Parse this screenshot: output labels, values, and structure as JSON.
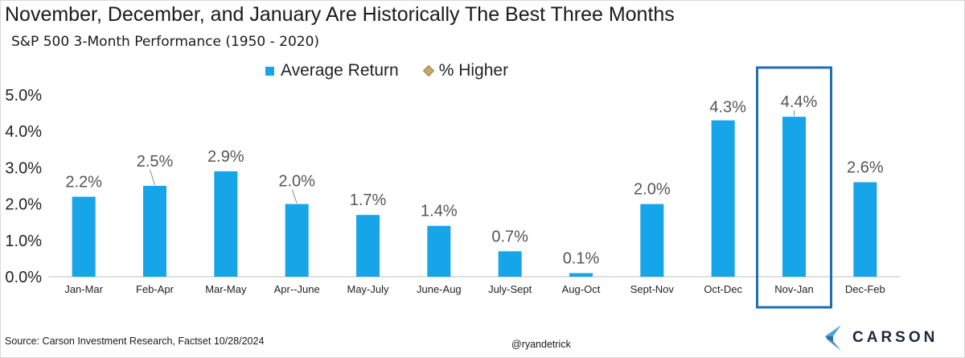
{
  "title": "November, December, and January Are Historically The Best Three Months",
  "subtitle": "S&P 500 3-Month Performance (1950 - 2020)",
  "legend": [
    {
      "label": "Average Return",
      "marker": "square",
      "color": "#17a5ea"
    },
    {
      "label": "% Higher",
      "marker": "diamond",
      "color": "#c8a86a"
    }
  ],
  "footer": {
    "source": "Source: Carson Investment Research, Factset 10/28/2024",
    "handle": "@ryandetrick"
  },
  "logo": {
    "text": "CARSON"
  },
  "chart_data": {
    "type": "bar",
    "categories": [
      "Jan-Mar",
      "Feb-Apr",
      "Mar-May",
      "Apr--June",
      "May-July",
      "June-Aug",
      "July-Sept",
      "Aug-Oct",
      "Sept-Nov",
      "Oct-Dec",
      "Nov-Jan",
      "Dec-Feb"
    ],
    "series": [
      {
        "name": "Average Return",
        "values": [
          2.2,
          2.5,
          2.9,
          2.0,
          1.7,
          1.4,
          0.7,
          0.1,
          2.0,
          4.3,
          4.4,
          2.6
        ]
      }
    ],
    "data_labels": [
      "2.2%",
      "2.5%",
      "2.9%",
      "2.0%",
      "1.7%",
      "1.4%",
      "0.7%",
      "0.1%",
      "2.0%",
      "4.3%",
      "4.4%",
      "2.6%"
    ],
    "y_ticks": [
      "0.0%",
      "1.0%",
      "2.0%",
      "3.0%",
      "4.0%",
      "5.0%"
    ],
    "ylim": [
      0,
      5.0
    ],
    "grid": false,
    "legend_position": "top",
    "highlight_category": "Nov-Jan",
    "bar_color": "#17a5ea",
    "highlight_color": "#1f6fb5"
  }
}
